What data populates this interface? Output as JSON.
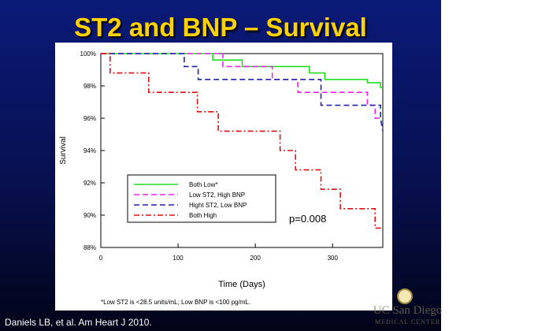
{
  "slide": {
    "title": "ST2 and BNP – Survival",
    "citation": "Daniels LB, et al.  Am Heart J 2010.",
    "logo_text": "UC San Diego",
    "logo_sub": "MEDICAL CENTER",
    "background_color": "#0a1a78",
    "title_color": "#ffd200"
  },
  "chart_data": {
    "type": "line",
    "ylabel": "Survival",
    "xlabel": "Time (Days)",
    "footnote": "*Low ST2 is <28.5 units/mL; Low BNP is <100 pg/mL.",
    "annotation": "p=0.008",
    "xlim": [
      0,
      365
    ],
    "ylim": [
      88,
      100
    ],
    "x_ticks": [
      0,
      100,
      200,
      300
    ],
    "y_ticks": [
      88,
      90,
      92,
      94,
      96,
      98,
      100
    ],
    "y_tick_labels": [
      "88%",
      "90%",
      "92%",
      "94%",
      "96%",
      "98%",
      "100%"
    ],
    "legend_position": "lower-left",
    "series": [
      {
        "name": "Both Low*",
        "color": "#22dd22",
        "dash": "solid",
        "points": [
          [
            0,
            100
          ],
          [
            145,
            100
          ],
          [
            145,
            99.6
          ],
          [
            183,
            99.6
          ],
          [
            183,
            99.2
          ],
          [
            270,
            99.2
          ],
          [
            270,
            98.8
          ],
          [
            290,
            98.8
          ],
          [
            290,
            98.4
          ],
          [
            345,
            98.4
          ],
          [
            345,
            98.2
          ],
          [
            362,
            98.2
          ],
          [
            362,
            97.9
          ],
          [
            365,
            97.9
          ]
        ]
      },
      {
        "name": "Low ST2, High BNP",
        "color": "#ee22ee",
        "dash": "dashed",
        "points": [
          [
            0,
            100
          ],
          [
            158,
            100
          ],
          [
            158,
            99.2
          ],
          [
            222,
            99.2
          ],
          [
            222,
            98.4
          ],
          [
            255,
            98.4
          ],
          [
            255,
            97.6
          ],
          [
            345,
            97.6
          ],
          [
            345,
            96.8
          ],
          [
            355,
            96.8
          ],
          [
            355,
            96.0
          ],
          [
            365,
            96.0
          ]
        ]
      },
      {
        "name": "Hight ST2, Low BNP",
        "color": "#2222aa",
        "dash": "dashed",
        "points": [
          [
            0,
            100
          ],
          [
            108,
            100
          ],
          [
            108,
            99.2
          ],
          [
            126,
            99.2
          ],
          [
            126,
            98.4
          ],
          [
            285,
            98.4
          ],
          [
            285,
            96.8
          ],
          [
            362,
            96.8
          ],
          [
            362,
            96.0
          ],
          [
            365,
            95.2
          ]
        ]
      },
      {
        "name": "Both High",
        "color": "#dd1111",
        "dash": "dashdot",
        "points": [
          [
            0,
            100
          ],
          [
            12,
            100
          ],
          [
            12,
            98.8
          ],
          [
            62,
            98.8
          ],
          [
            62,
            97.6
          ],
          [
            125,
            97.6
          ],
          [
            125,
            96.4
          ],
          [
            152,
            96.4
          ],
          [
            152,
            95.2
          ],
          [
            232,
            95.2
          ],
          [
            232,
            94.0
          ],
          [
            252,
            94.0
          ],
          [
            252,
            92.8
          ],
          [
            285,
            92.8
          ],
          [
            285,
            91.6
          ],
          [
            310,
            91.6
          ],
          [
            310,
            90.4
          ],
          [
            355,
            90.4
          ],
          [
            355,
            89.2
          ],
          [
            365,
            89.2
          ]
        ]
      }
    ]
  }
}
